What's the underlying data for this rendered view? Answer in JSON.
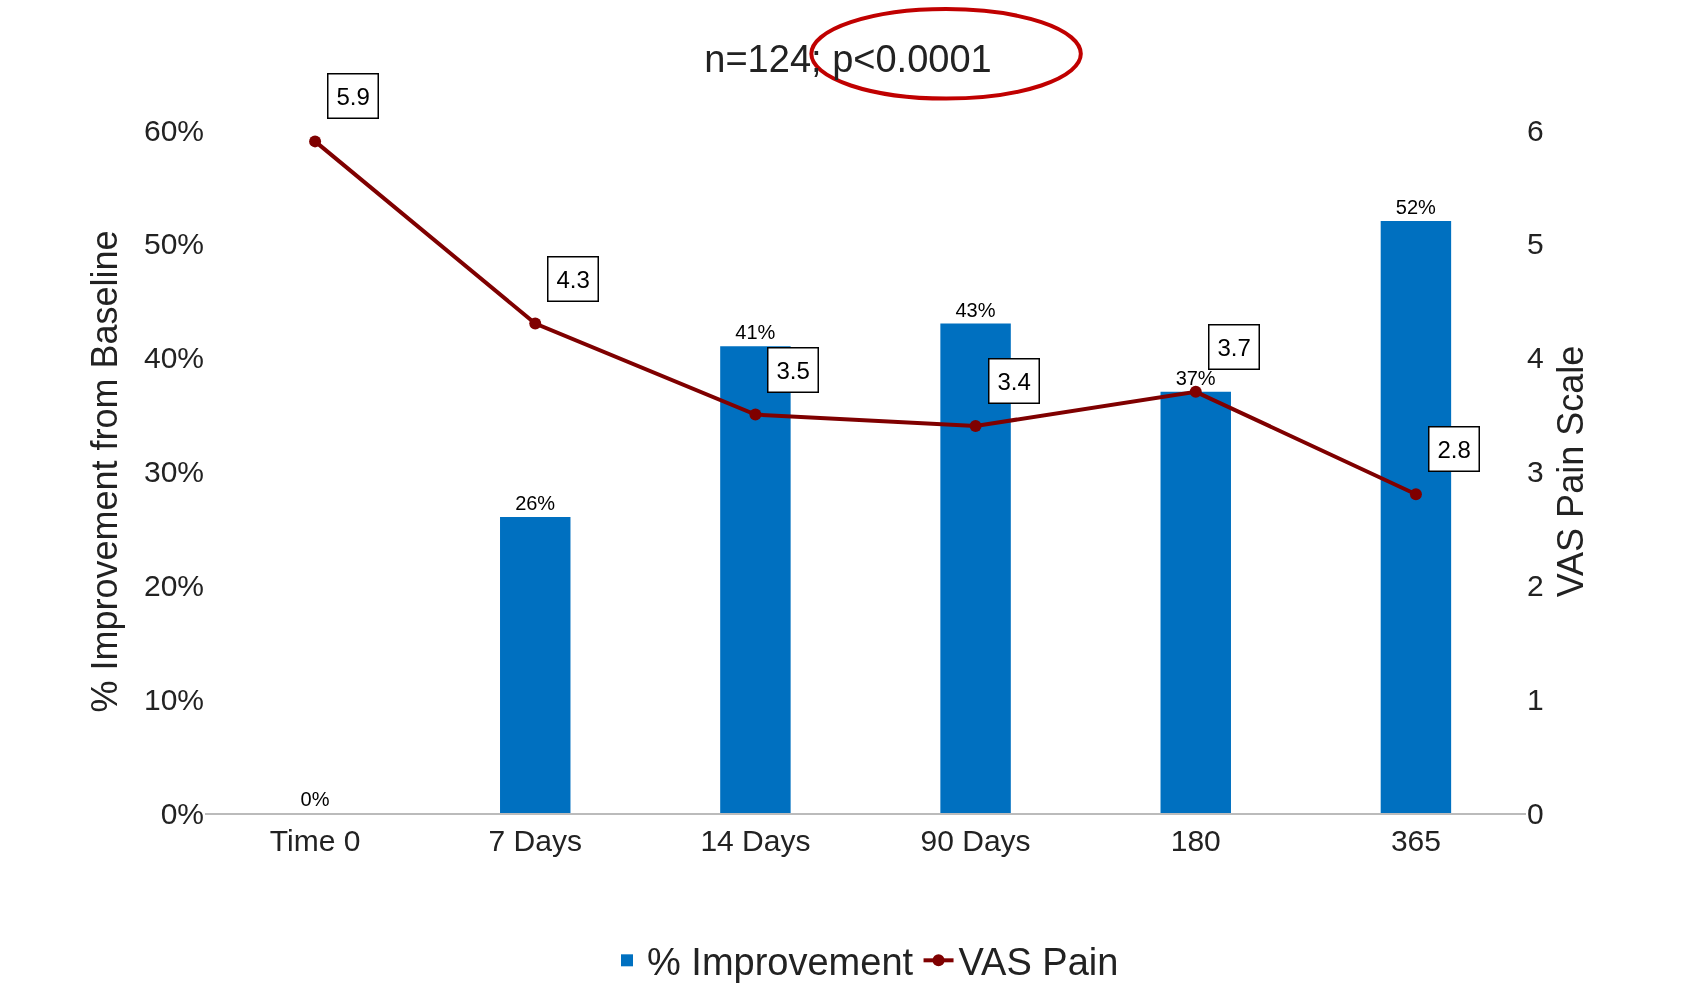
{
  "chart_data": {
    "type": "bar",
    "title": "n=124; p<0.0001",
    "categories": [
      "Time 0",
      "7 Days",
      "14 Days",
      "90 Days",
      "180",
      "365"
    ],
    "series": [
      {
        "name": "% Improvement",
        "color": "#0070c0",
        "values": [
          0,
          26,
          41,
          43,
          37,
          52
        ],
        "value_labels": [
          "0%",
          "26%",
          "41%",
          "43%",
          "37%",
          "52%"
        ]
      },
      {
        "name": "VAS Pain",
        "type": "line",
        "axis": "y2",
        "color": "#7f0000",
        "marker": "circle",
        "values": [
          5.9,
          4.3,
          3.5,
          3.4,
          3.7,
          2.8
        ],
        "value_labels": [
          "5.9",
          "4.3",
          "3.5",
          "3.4",
          "3.7",
          "2.8"
        ]
      }
    ],
    "ylabel": "% Improvement from Baseline",
    "y2label": "VAS Pain Scale",
    "ylim": [
      0,
      60
    ],
    "yticks": [
      {
        "value": 0,
        "label": "0%"
      },
      {
        "value": 10,
        "label": "10%"
      },
      {
        "value": 20,
        "label": "20%"
      },
      {
        "value": 30,
        "label": "30%"
      },
      {
        "value": 40,
        "label": "40%"
      },
      {
        "value": 50,
        "label": "50%"
      },
      {
        "value": 60,
        "label": "60%"
      }
    ],
    "y2lim": [
      0,
      6
    ],
    "y2ticks": [
      0,
      1,
      2,
      3,
      4,
      5,
      6
    ],
    "legend": "bottom"
  }
}
